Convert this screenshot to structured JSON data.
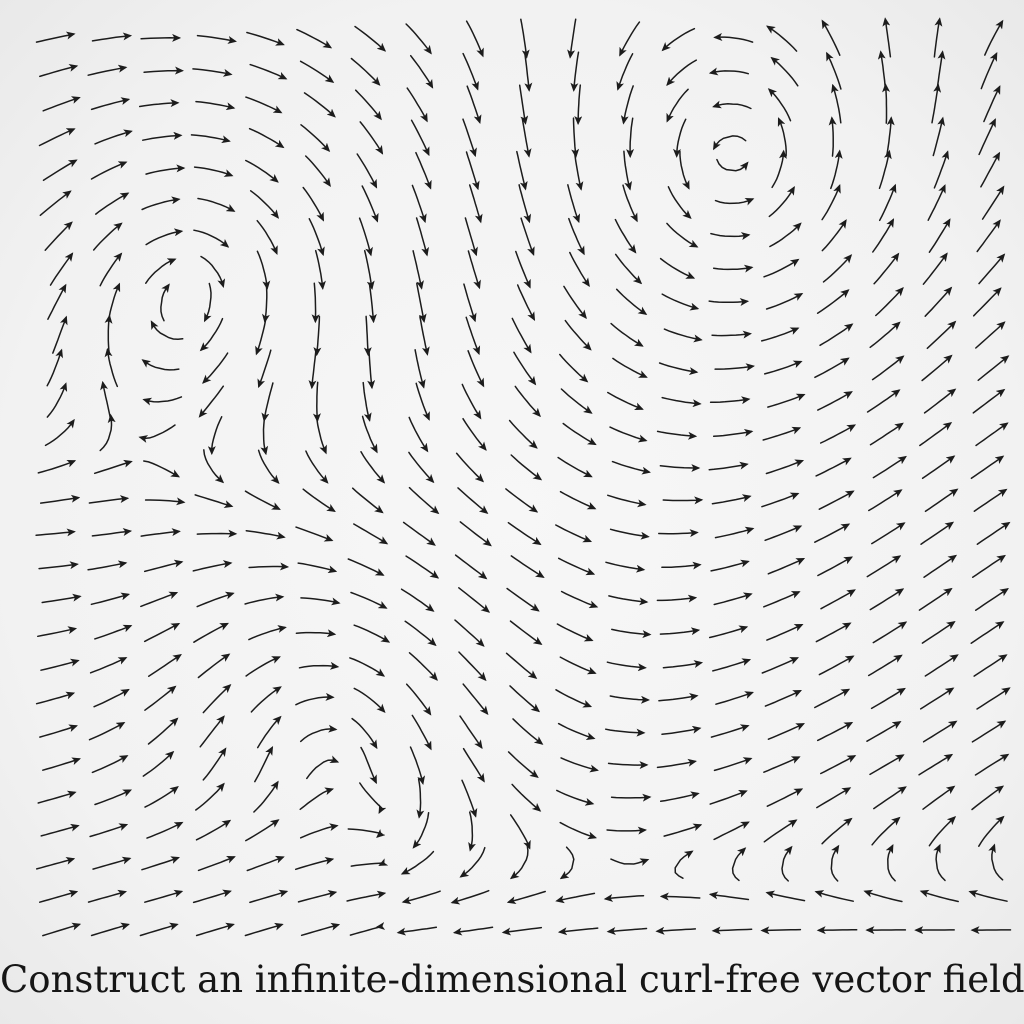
{
  "caption": "Construct an infinite-dimensional curl-free vector field",
  "colors": {
    "background": "#f4f4f4",
    "arrow": "#1c1c1c",
    "text": "#161616"
  },
  "icons": {
    "field_arrow": "arrow-icon"
  }
}
